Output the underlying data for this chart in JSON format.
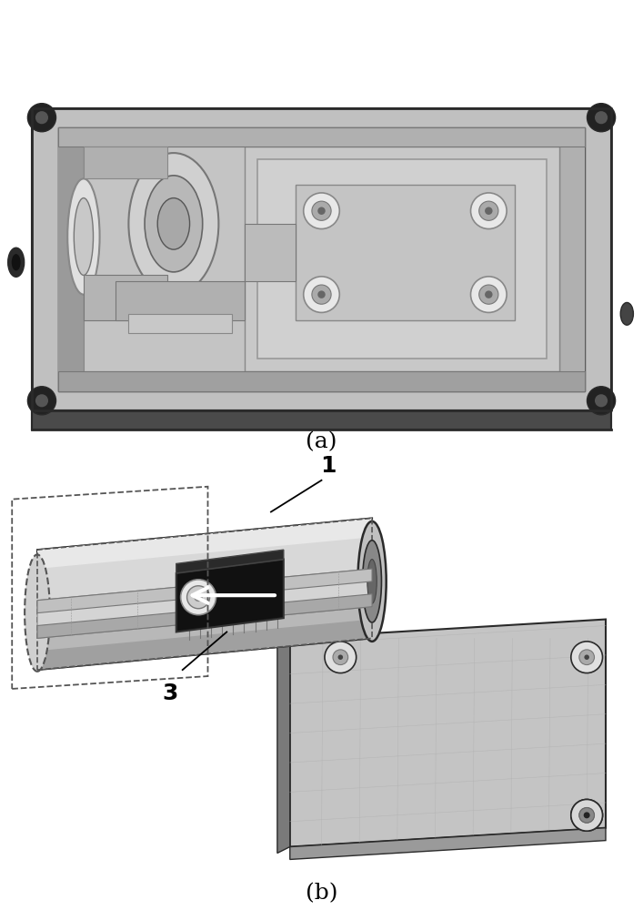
{
  "label_a": "(a)",
  "label_b": "(b)",
  "label_1": "1",
  "label_3": "3",
  "bg_color": "#ffffff",
  "label_fontsize": 18,
  "annotation_fontsize": 18,
  "fig_width": 7.07,
  "fig_height": 10.0,
  "dpi": 100,
  "colors": {
    "box_top": "#c0c0c0",
    "box_inner": "#d4d4d4",
    "box_side_dark": "#3a3a3a",
    "box_side_med": "#5a5a5a",
    "box_bottom": "#4a4a4a",
    "box_wall_dark": "#6a6a6a",
    "box_wall_light": "#b0b0b0",
    "inner_floor": "#c8c8c8",
    "inner_raised": "#b8b8b8",
    "inner_darker": "#a8a8a8",
    "screw_dark": "#222222",
    "screw_light": "#dddddd",
    "hole_dark": "#181818",
    "cylinder_light": "#d0d0d0",
    "cylinder_mid": "#b8b8b8",
    "cylinder_dark": "#888888",
    "cylinder_top": "#e0e0e0",
    "cylinder_shadow": "#909090",
    "chip_black": "#111111",
    "chip_white": "#ffffff",
    "plate_top": "#c4c4c4",
    "plate_side": "#9a9a9a",
    "plate_dark": "#7a7a7a",
    "connector_gray": "#aaaaaa",
    "edge_dark": "#2a2a2a"
  }
}
